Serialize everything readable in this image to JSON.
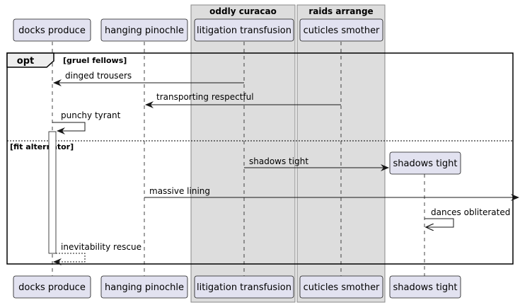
{
  "groups": {
    "oddly": "oddly curacao",
    "raids": "raids arrange"
  },
  "participants": {
    "docks": "docks produce",
    "hanging": "hanging pinochle",
    "litigation": "litigation transfusion",
    "cuticles": "cuticles smother",
    "shadows": "shadows tight"
  },
  "fragment": {
    "keyword": "opt",
    "guard": "[gruel fellows]",
    "else_guard": "[fit alternator]"
  },
  "messages": {
    "m1": "dinged trousers",
    "m2": "transporting respectful",
    "m3": "punchy tyrant",
    "m4": "shadows tight",
    "m5": "massive lining",
    "m6": "dances obliterated",
    "m7": "inevitability rescue"
  },
  "colors": {
    "participant_fill": "#e2e2f0",
    "participant_border": "#181818",
    "group_fill": "#dddddd",
    "group_border": "#888888",
    "lifeline": "#181818"
  }
}
